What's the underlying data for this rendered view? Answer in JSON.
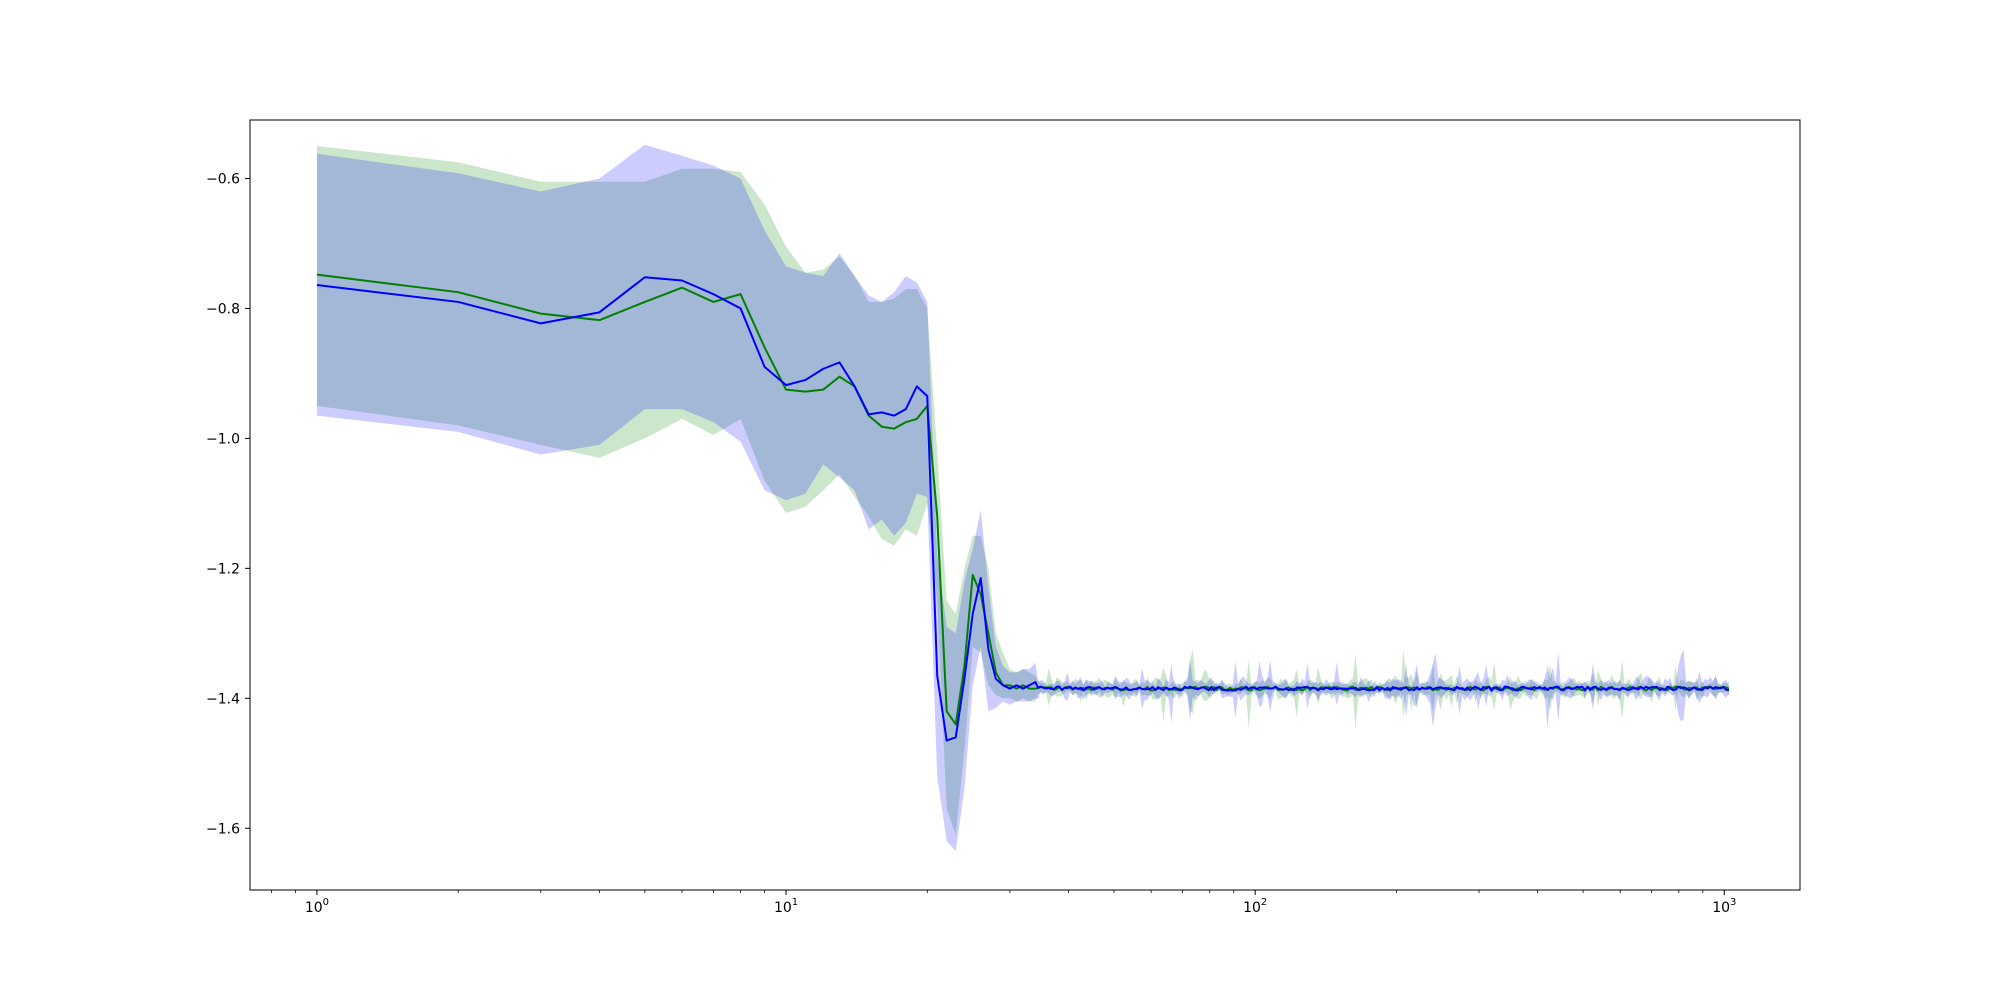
{
  "chart_data": {
    "type": "line",
    "title": "",
    "xlabel": "",
    "ylabel": "",
    "xscale": "log",
    "xlim": [
      0.72,
      1450
    ],
    "ylim": [
      -1.695,
      -0.51
    ],
    "grid": false,
    "legend": "none",
    "x_ticks": [
      {
        "base": "10",
        "exp": "0",
        "value": 1
      },
      {
        "base": "10",
        "exp": "1",
        "value": 10
      },
      {
        "base": "10",
        "exp": "2",
        "value": 100
      },
      {
        "base": "10",
        "exp": "3",
        "value": 1000
      }
    ],
    "y_ticks": [
      {
        "label": "−0.6",
        "value": -0.6
      },
      {
        "label": "−0.8",
        "value": -0.8
      },
      {
        "label": "−1.0",
        "value": -1.0
      },
      {
        "label": "−1.2",
        "value": -1.2
      },
      {
        "label": "−1.4",
        "value": -1.4
      },
      {
        "label": "−1.6",
        "value": -1.6
      }
    ],
    "tail": {
      "start": 34,
      "end": 1023,
      "level": -1.385
    },
    "series": [
      {
        "color": "#008000",
        "fill_color": "#008000",
        "fill_opacity": 0.2,
        "x": [
          1,
          2,
          3,
          4,
          5,
          6,
          7,
          8,
          9,
          10,
          11,
          12,
          13,
          14,
          15,
          16,
          17,
          18,
          19,
          20,
          21,
          22,
          23,
          24,
          25,
          26,
          27,
          28,
          29,
          30,
          31,
          32,
          33,
          34
        ],
        "y": [
          -0.748,
          -0.775,
          -0.808,
          -0.818,
          -0.79,
          -0.768,
          -0.79,
          -0.778,
          -0.86,
          -0.925,
          -0.928,
          -0.925,
          -0.905,
          -0.92,
          -0.965,
          -0.982,
          -0.985,
          -0.975,
          -0.97,
          -0.95,
          -1.12,
          -1.42,
          -1.44,
          -1.35,
          -1.21,
          -1.24,
          -1.3,
          -1.36,
          -1.38,
          -1.38,
          -1.385,
          -1.38,
          -1.385,
          -1.385
        ],
        "upper": [
          -0.55,
          -0.575,
          -0.605,
          -0.605,
          -0.605,
          -0.585,
          -0.585,
          -0.59,
          -0.64,
          -0.705,
          -0.745,
          -0.74,
          -0.72,
          -0.75,
          -0.79,
          -0.79,
          -0.785,
          -0.77,
          -0.77,
          -0.8,
          -1.02,
          -1.25,
          -1.27,
          -1.2,
          -1.15,
          -1.15,
          -1.2,
          -1.3,
          -1.33,
          -1.355,
          -1.36,
          -1.355,
          -1.36,
          -1.365
        ],
        "lower": [
          -0.95,
          -0.98,
          -1.01,
          -1.03,
          -1.0,
          -0.97,
          -0.995,
          -0.97,
          -1.065,
          -1.115,
          -1.105,
          -1.08,
          -1.055,
          -1.09,
          -1.12,
          -1.155,
          -1.165,
          -1.14,
          -1.15,
          -1.1,
          -1.25,
          -1.57,
          -1.61,
          -1.48,
          -1.32,
          -1.33,
          -1.38,
          -1.395,
          -1.4,
          -1.4,
          -1.405,
          -1.4,
          -1.405,
          -1.405
        ]
      },
      {
        "color": "#0000ff",
        "fill_color": "#0000ff",
        "fill_opacity": 0.2,
        "x": [
          1,
          2,
          3,
          4,
          5,
          6,
          7,
          8,
          9,
          10,
          11,
          12,
          13,
          14,
          15,
          16,
          17,
          18,
          19,
          20,
          21,
          22,
          23,
          24,
          25,
          26,
          27,
          28,
          29,
          30,
          31,
          32,
          33,
          34
        ],
        "y": [
          -0.764,
          -0.79,
          -0.823,
          -0.806,
          -0.752,
          -0.757,
          -0.778,
          -0.8,
          -0.89,
          -0.918,
          -0.91,
          -0.893,
          -0.883,
          -0.92,
          -0.963,
          -0.96,
          -0.965,
          -0.955,
          -0.92,
          -0.935,
          -1.365,
          -1.465,
          -1.46,
          -1.37,
          -1.27,
          -1.215,
          -1.325,
          -1.37,
          -1.38,
          -1.385,
          -1.38,
          -1.385,
          -1.38,
          -1.375
        ],
        "upper": [
          -0.562,
          -0.592,
          -0.62,
          -0.6,
          -0.548,
          -0.565,
          -0.58,
          -0.6,
          -0.68,
          -0.735,
          -0.745,
          -0.75,
          -0.715,
          -0.75,
          -0.78,
          -0.79,
          -0.775,
          -0.75,
          -0.76,
          -0.79,
          -1.18,
          -1.29,
          -1.3,
          -1.22,
          -1.17,
          -1.11,
          -1.23,
          -1.32,
          -1.35,
          -1.36,
          -1.36,
          -1.355,
          -1.355,
          -1.345
        ],
        "lower": [
          -0.965,
          -0.99,
          -1.025,
          -1.01,
          -0.955,
          -0.955,
          -0.975,
          -1.005,
          -1.08,
          -1.095,
          -1.085,
          -1.04,
          -1.06,
          -1.08,
          -1.14,
          -1.125,
          -1.15,
          -1.13,
          -1.085,
          -1.09,
          -1.52,
          -1.62,
          -1.635,
          -1.54,
          -1.38,
          -1.32,
          -1.42,
          -1.415,
          -1.405,
          -1.41,
          -1.405,
          -1.405,
          -1.405,
          -1.4
        ]
      }
    ]
  }
}
